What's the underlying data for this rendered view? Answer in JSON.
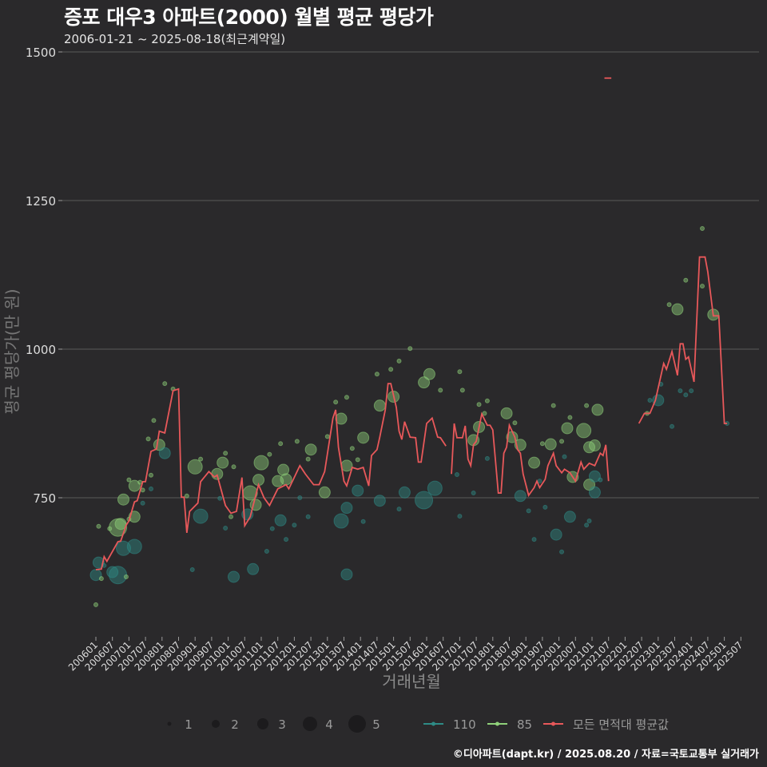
{
  "chart_data": {
    "type": "scatter+line",
    "title": "증포 대우3 아파트(2000) 월별 평균 평당가",
    "subtitle": "2006-01-21 ~ 2025-08-18(최근계약일)",
    "xlabel": "거래년월",
    "ylabel": "평균 평당가(만 원)",
    "x_unit": "month index from 2006-01",
    "ylim": [
      560,
      1530
    ],
    "y_ticks": [
      750,
      1000,
      1250,
      1500
    ],
    "y_tick_labels": [
      "750",
      "1000",
      "1250",
      "1500"
    ],
    "x_tick_labels": [
      "200601",
      "200607",
      "200701",
      "200707",
      "200801",
      "200807",
      "200901",
      "200907",
      "201001",
      "201007",
      "201101",
      "201107",
      "201201",
      "201207",
      "201301",
      "201307",
      "201401",
      "201407",
      "201501",
      "201507",
      "201601",
      "201607",
      "201701",
      "201707",
      "201801",
      "201807",
      "201901",
      "201907",
      "202001",
      "202007",
      "202101",
      "202107",
      "202201",
      "202207",
      "202301",
      "202307",
      "202401",
      "202407",
      "202501",
      "202507"
    ],
    "grid": true,
    "legend": {
      "position": "bottom",
      "size_title": "",
      "sizes": [
        1,
        2,
        3,
        4,
        5
      ],
      "size_labels": [
        "1",
        "2",
        "3",
        "4",
        "5"
      ],
      "series": [
        {
          "label": "110",
          "color": "#2e8b86"
        },
        {
          "label": "85",
          "color": "#8fd17a"
        },
        {
          "label": "모든 면적대 평균값",
          "color": "#e8585a"
        }
      ]
    },
    "line_segments": [
      [
        [
          0,
          629
        ],
        [
          2,
          630
        ],
        [
          3,
          651
        ],
        [
          4,
          643
        ],
        [
          8,
          676
        ],
        [
          9,
          677
        ],
        [
          11,
          704
        ],
        [
          12,
          711
        ],
        [
          14,
          743
        ],
        [
          15,
          745
        ],
        [
          17,
          777
        ],
        [
          18,
          777
        ],
        [
          20,
          828
        ],
        [
          22,
          832
        ],
        [
          23,
          862
        ],
        [
          25,
          859
        ],
        [
          28,
          930
        ],
        [
          30,
          933
        ],
        [
          31,
          751
        ],
        [
          32,
          751
        ],
        [
          33,
          691
        ],
        [
          34,
          727
        ],
        [
          37,
          741
        ],
        [
          38,
          777
        ],
        [
          41,
          794
        ],
        [
          43,
          785
        ],
        [
          44,
          788
        ],
        [
          47,
          737
        ],
        [
          49,
          724
        ],
        [
          51,
          727
        ],
        [
          53,
          784
        ],
        [
          54,
          703
        ],
        [
          56,
          718
        ],
        [
          59,
          772
        ],
        [
          61,
          750
        ],
        [
          63,
          737
        ],
        [
          66,
          765
        ],
        [
          69,
          772
        ],
        [
          70,
          765
        ],
        [
          74,
          804
        ],
        [
          76,
          790
        ],
        [
          79,
          772
        ],
        [
          81,
          772
        ],
        [
          83,
          794
        ],
        [
          86,
          884
        ],
        [
          87,
          898
        ],
        [
          88,
          835
        ],
        [
          90,
          778
        ],
        [
          91,
          770
        ],
        [
          93,
          801
        ],
        [
          95,
          798
        ],
        [
          97,
          801
        ],
        [
          99,
          770
        ],
        [
          100,
          821
        ],
        [
          102,
          831
        ],
        [
          103,
          852
        ],
        [
          105,
          898
        ],
        [
          106,
          942
        ],
        [
          107,
          942
        ],
        [
          109,
          902
        ],
        [
          110,
          862
        ],
        [
          111,
          848
        ],
        [
          112,
          878
        ],
        [
          114,
          852
        ],
        [
          116,
          851
        ],
        [
          117,
          810
        ],
        [
          118,
          810
        ],
        [
          120,
          875
        ],
        [
          122,
          884
        ],
        [
          124,
          852
        ],
        [
          125,
          851
        ],
        [
          127,
          837
        ]
      ],
      [
        [
          129,
          790
        ],
        [
          130,
          875
        ],
        [
          131,
          851
        ],
        [
          133,
          851
        ],
        [
          134,
          871
        ],
        [
          135,
          815
        ],
        [
          136,
          804
        ],
        [
          137,
          839
        ],
        [
          138,
          845
        ],
        [
          140,
          891
        ],
        [
          142,
          872
        ],
        [
          143,
          872
        ],
        [
          144,
          864
        ],
        [
          146,
          758
        ],
        [
          147,
          758
        ],
        [
          148,
          825
        ],
        [
          149,
          835
        ],
        [
          150,
          872
        ],
        [
          152,
          852
        ],
        [
          153,
          831
        ],
        [
          154,
          825
        ],
        [
          155,
          790
        ],
        [
          157,
          754
        ],
        [
          159,
          767
        ],
        [
          160,
          778
        ],
        [
          161,
          767
        ],
        [
          163,
          781
        ],
        [
          164,
          804
        ],
        [
          166,
          825
        ],
        [
          167,
          804
        ],
        [
          169,
          792
        ],
        [
          170,
          798
        ],
        [
          172,
          792
        ],
        [
          174,
          778
        ],
        [
          176,
          810
        ],
        [
          177,
          798
        ],
        [
          179,
          808
        ],
        [
          181,
          804
        ],
        [
          183,
          825
        ],
        [
          184,
          821
        ],
        [
          185,
          839
        ],
        [
          186,
          778
        ]
      ],
      [
        [
          184.5,
          1456
        ],
        [
          187,
          1456
        ]
      ],
      [
        [
          197,
          875
        ],
        [
          199,
          892
        ],
        [
          201,
          892
        ],
        [
          203,
          914
        ],
        [
          206,
          976
        ],
        [
          207,
          966
        ],
        [
          209,
          996
        ],
        [
          211,
          956
        ],
        [
          212,
          1009
        ],
        [
          213,
          1009
        ],
        [
          214,
          983
        ],
        [
          215,
          987
        ],
        [
          217,
          945
        ],
        [
          219,
          1155
        ],
        [
          221,
          1155
        ],
        [
          222,
          1130
        ],
        [
          224,
          1056
        ],
        [
          226,
          1056
        ],
        [
          228,
          875
        ],
        [
          229,
          875
        ]
      ]
    ],
    "points": [
      [
        25,
        942,
        "85",
        1
      ],
      [
        28,
        933,
        "85",
        1
      ],
      [
        21,
        880,
        "85",
        1
      ],
      [
        19,
        849,
        "85",
        1
      ],
      [
        23,
        839,
        "85",
        3
      ],
      [
        25,
        825,
        "110",
        3
      ],
      [
        12,
        780,
        "85",
        1
      ],
      [
        14,
        770,
        "85",
        3
      ],
      [
        16,
        776,
        "85",
        1
      ],
      [
        20,
        788,
        "85",
        1
      ],
      [
        10,
        747,
        "85",
        3
      ],
      [
        17,
        763,
        "85",
        1
      ],
      [
        20,
        765,
        "110",
        1
      ],
      [
        17,
        741,
        "110",
        1
      ],
      [
        14,
        718,
        "85",
        3
      ],
      [
        12,
        714,
        "85",
        1
      ],
      [
        8,
        700,
        "85",
        5
      ],
      [
        9,
        706,
        "85",
        3
      ],
      [
        5,
        698,
        "85",
        1
      ],
      [
        1,
        702,
        "85",
        1
      ],
      [
        10,
        665,
        "110",
        4
      ],
      [
        14,
        668,
        "110",
        4
      ],
      [
        1,
        641,
        "110",
        3
      ],
      [
        0,
        620,
        "110",
        3
      ],
      [
        6,
        625,
        "110",
        3
      ],
      [
        8,
        620,
        "110",
        5
      ],
      [
        2,
        614,
        "85",
        1
      ],
      [
        11,
        617,
        "85",
        1
      ],
      [
        0,
        570,
        "85",
        1
      ],
      [
        3,
        636,
        "110",
        1
      ],
      [
        36,
        802,
        "85",
        4
      ],
      [
        38,
        815,
        "85",
        1
      ],
      [
        33,
        753,
        "85",
        1
      ],
      [
        38,
        719,
        "110",
        4
      ],
      [
        35,
        629,
        "110",
        1
      ],
      [
        46,
        809,
        "85",
        3
      ],
      [
        47,
        825,
        "85",
        1
      ],
      [
        44,
        790,
        "85",
        3
      ],
      [
        50,
        802,
        "85",
        1
      ],
      [
        49,
        718,
        "85",
        1
      ],
      [
        47,
        699,
        "110",
        1
      ],
      [
        50,
        617,
        "110",
        3
      ],
      [
        57,
        630,
        "110",
        3
      ],
      [
        45,
        749,
        "110",
        1
      ],
      [
        60,
        809,
        "85",
        4
      ],
      [
        59,
        780,
        "85",
        3
      ],
      [
        56,
        758,
        "85",
        4
      ],
      [
        58,
        738,
        "85",
        3
      ],
      [
        55,
        722,
        "110",
        3
      ],
      [
        63,
        823,
        "85",
        1
      ],
      [
        67,
        841,
        "85",
        1
      ],
      [
        67,
        712,
        "110",
        3
      ],
      [
        62,
        660,
        "110",
        1
      ],
      [
        64,
        698,
        "110",
        1
      ],
      [
        69,
        680,
        "110",
        1
      ],
      [
        68,
        797,
        "85",
        3
      ],
      [
        69,
        781,
        "85",
        3
      ],
      [
        66,
        778,
        "85",
        3
      ],
      [
        73,
        845,
        "85",
        1
      ],
      [
        78,
        831,
        "85",
        3
      ],
      [
        77,
        815,
        "85",
        1
      ],
      [
        72,
        704,
        "110",
        1
      ],
      [
        77,
        718,
        "110",
        1
      ],
      [
        74,
        750,
        "110",
        1
      ],
      [
        89,
        883,
        "85",
        3
      ],
      [
        97,
        851,
        "85",
        3
      ],
      [
        91,
        804,
        "85",
        3
      ],
      [
        83,
        759,
        "85",
        3
      ],
      [
        95,
        762,
        "110",
        3
      ],
      [
        91,
        733,
        "110",
        3
      ],
      [
        89,
        711,
        "110",
        4
      ],
      [
        91,
        621,
        "110",
        3
      ],
      [
        103,
        745,
        "110",
        3
      ],
      [
        112,
        759,
        "110",
        3
      ],
      [
        119,
        746,
        "110",
        5
      ],
      [
        123,
        766,
        "110",
        4
      ],
      [
        103,
        905,
        "85",
        3
      ],
      [
        108,
        920,
        "85",
        3
      ],
      [
        119,
        944,
        "85",
        3
      ],
      [
        121,
        958,
        "85",
        3
      ],
      [
        114,
        1001,
        "85",
        1
      ],
      [
        110,
        980,
        "85",
        1
      ],
      [
        107,
        966,
        "85",
        1
      ],
      [
        102,
        958,
        "85",
        1
      ],
      [
        132,
        962,
        "85",
        1
      ],
      [
        133,
        931,
        "85",
        1
      ],
      [
        125,
        931,
        "85",
        1
      ],
      [
        87,
        911,
        "85",
        1
      ],
      [
        91,
        919,
        "85",
        1
      ],
      [
        84,
        853,
        "85",
        1
      ],
      [
        93,
        833,
        "85",
        1
      ],
      [
        95,
        814,
        "85",
        1
      ],
      [
        110,
        731,
        "110",
        1
      ],
      [
        97,
        710,
        "110",
        1
      ],
      [
        137,
        847,
        "85",
        3
      ],
      [
        139,
        869,
        "85",
        3
      ],
      [
        149,
        892,
        "85",
        3
      ],
      [
        151,
        852,
        "85",
        3
      ],
      [
        154,
        839,
        "85",
        3
      ],
      [
        159,
        809,
        "85",
        3
      ],
      [
        139,
        907,
        "85",
        1
      ],
      [
        142,
        913,
        "85",
        1
      ],
      [
        141,
        892,
        "85",
        1
      ],
      [
        152,
        876,
        "85",
        1
      ],
      [
        154,
        753,
        "110",
        3
      ],
      [
        142,
        816,
        "110",
        1
      ],
      [
        131,
        789,
        "110",
        1
      ],
      [
        137,
        758,
        "110",
        1
      ],
      [
        132,
        719,
        "110",
        1
      ],
      [
        171,
        867,
        "85",
        3
      ],
      [
        177,
        863,
        "85",
        4
      ],
      [
        165,
        840,
        "85",
        3
      ],
      [
        179,
        835,
        "85",
        3
      ],
      [
        181,
        838,
        "85",
        3
      ],
      [
        182,
        898,
        "85",
        3
      ],
      [
        179,
        772,
        "85",
        3
      ],
      [
        173,
        785,
        "85",
        3
      ],
      [
        181,
        786,
        "110",
        3
      ],
      [
        181,
        759,
        "110",
        3
      ],
      [
        172,
        718,
        "110",
        3
      ],
      [
        167,
        688,
        "110",
        3
      ],
      [
        166,
        905,
        "85",
        1
      ],
      [
        178,
        905,
        "85",
        1
      ],
      [
        172,
        885,
        "85",
        1
      ],
      [
        169,
        845,
        "85",
        1
      ],
      [
        162,
        841,
        "85",
        1
      ],
      [
        170,
        819,
        "110",
        1
      ],
      [
        161,
        778,
        "110",
        1
      ],
      [
        163,
        734,
        "110",
        1
      ],
      [
        157,
        728,
        "110",
        1
      ],
      [
        159,
        680,
        "110",
        1
      ],
      [
        169,
        659,
        "110",
        1
      ],
      [
        178,
        704,
        "110",
        1
      ],
      [
        179,
        711,
        "110",
        1
      ],
      [
        183,
        780,
        "110",
        1
      ],
      [
        220,
        1203,
        "85",
        1
      ],
      [
        214,
        1116,
        "85",
        1
      ],
      [
        220,
        1106,
        "85",
        1
      ],
      [
        208,
        1075,
        "85",
        1
      ],
      [
        211,
        1067,
        "85",
        3
      ],
      [
        224,
        1058,
        "85",
        3
      ],
      [
        200,
        892,
        "85",
        1
      ],
      [
        204,
        914,
        "110",
        3
      ],
      [
        201,
        914,
        "110",
        1
      ],
      [
        212,
        930,
        "110",
        1
      ],
      [
        214,
        923,
        "110",
        1
      ],
      [
        216,
        930,
        "110",
        1
      ],
      [
        209,
        870,
        "110",
        1
      ],
      [
        229,
        875,
        "110",
        1
      ],
      [
        205,
        941,
        "110",
        1
      ]
    ]
  },
  "footer": "©디아파트(dapt.kr) / 2025.08.20 / 자료=국토교통부 실거래가"
}
